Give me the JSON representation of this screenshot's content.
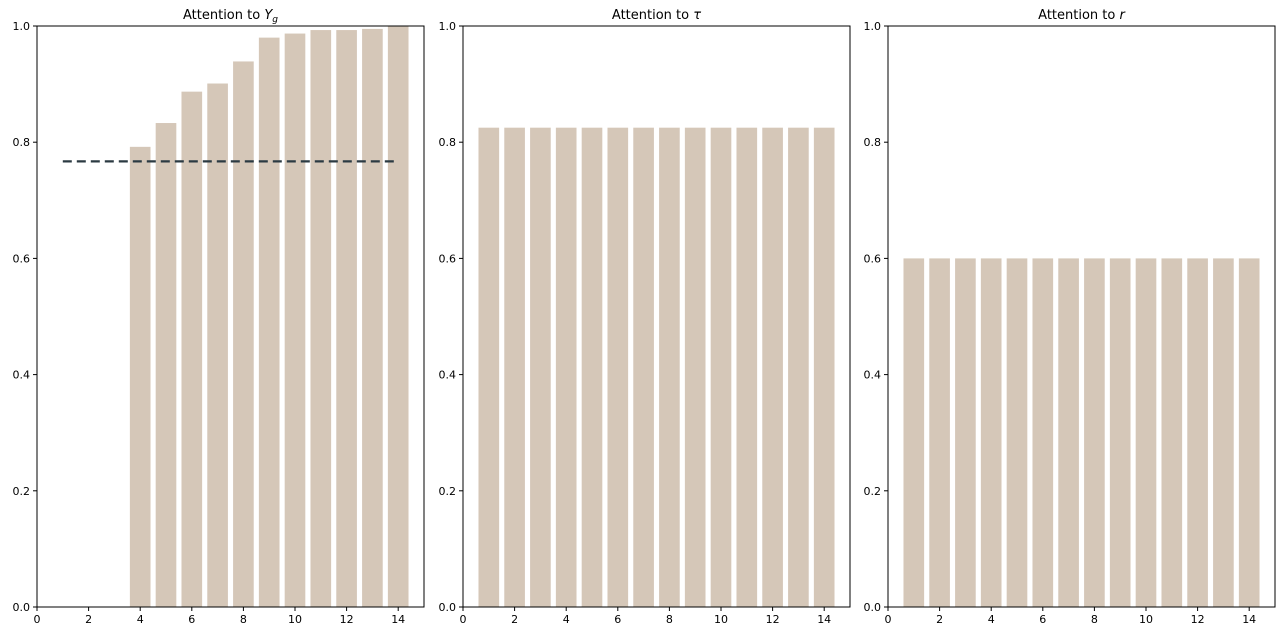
{
  "chart_data": [
    {
      "type": "bar",
      "title_prefix": "Attention to ",
      "title_symbol": "Y",
      "title_subscript": "g",
      "x": [
        1,
        2,
        3,
        4,
        5,
        6,
        7,
        8,
        9,
        10,
        11,
        12,
        13,
        14
      ],
      "values": [
        0,
        0,
        0,
        0.792,
        0.833,
        0.887,
        0.901,
        0.939,
        0.98,
        0.987,
        0.993,
        0.993,
        0.995,
        1.0
      ],
      "bar_color": "#d5c7b8",
      "reference_line": {
        "y": 0.767,
        "x_start": 1,
        "x_end": 14,
        "style": "dashed",
        "color": "#2b3a42"
      },
      "xlim": [
        0,
        15
      ],
      "ylim": [
        0,
        1
      ],
      "xticks": [
        "0",
        "2",
        "4",
        "6",
        "8",
        "10",
        "12",
        "14"
      ],
      "yticks": [
        "0.0",
        "0.2",
        "0.4",
        "0.6",
        "0.8",
        "1.0"
      ]
    },
    {
      "type": "bar",
      "title_prefix": "Attention to ",
      "title_symbol": "τ",
      "title_subscript": "",
      "x": [
        1,
        2,
        3,
        4,
        5,
        6,
        7,
        8,
        9,
        10,
        11,
        12,
        13,
        14
      ],
      "values": [
        0.825,
        0.825,
        0.825,
        0.825,
        0.825,
        0.825,
        0.825,
        0.825,
        0.825,
        0.825,
        0.825,
        0.825,
        0.825,
        0.825
      ],
      "bar_color": "#d5c7b8",
      "xlim": [
        0,
        15
      ],
      "ylim": [
        0,
        1
      ],
      "xticks": [
        "0",
        "2",
        "4",
        "6",
        "8",
        "10",
        "12",
        "14"
      ],
      "yticks": [
        "0.0",
        "0.2",
        "0.4",
        "0.6",
        "0.8",
        "1.0"
      ]
    },
    {
      "type": "bar",
      "title_prefix": "Attention to ",
      "title_symbol": "r",
      "title_subscript": "",
      "x": [
        1,
        2,
        3,
        4,
        5,
        6,
        7,
        8,
        9,
        10,
        11,
        12,
        13,
        14
      ],
      "values": [
        0.6,
        0.6,
        0.6,
        0.6,
        0.6,
        0.6,
        0.6,
        0.6,
        0.6,
        0.6,
        0.6,
        0.6,
        0.6,
        0.6
      ],
      "bar_color": "#d5c7b8",
      "xlim": [
        0,
        15
      ],
      "ylim": [
        0,
        1
      ],
      "xticks": [
        "0",
        "2",
        "4",
        "6",
        "8",
        "10",
        "12",
        "14"
      ],
      "yticks": [
        "0.0",
        "0.2",
        "0.4",
        "0.6",
        "0.8",
        "1.0"
      ]
    }
  ]
}
